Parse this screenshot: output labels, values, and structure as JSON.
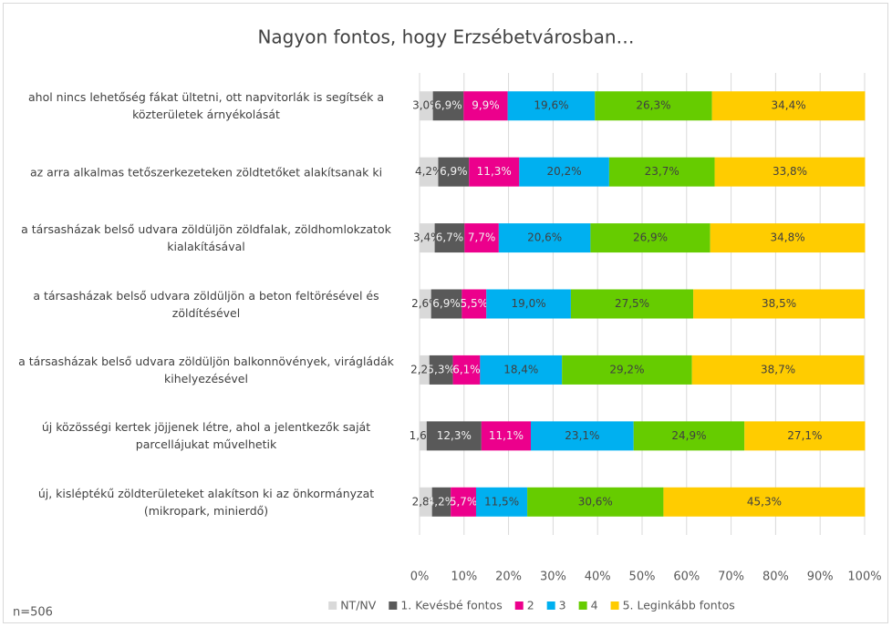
{
  "chart_data": {
    "type": "stacked-bar-horizontal",
    "title": "Nagyon fontos, hogy Erzsébetvárosban…",
    "annotation": "n=506",
    "categories": [
      "ahol nincs lehetőség fákat ültetni, ott napvitorlák is segítsék a közterületek árnyékolását",
      "az arra alkalmas tetőszerkezeteken zöldtetőket alakítsanak ki",
      "a társasházak belső udvara zöldüljön zöldfalak, zöldhomlokzatok kialakításával",
      "a társasházak belső udvara zöldüljön a beton feltörésével és zöldítésével",
      "a társasházak belső udvara zöldüljön balkonnövények, virágládák kihelyezésével",
      "új közösségi kertek jöjjenek létre, ahol a jelentkezők saját parcellájukat művelhetik",
      "új, kisléptékű zöldterületeket alakítson ki az önkormányzat (mikropark, minierdő)"
    ],
    "series": [
      {
        "name": "NT/NV",
        "color": "#d9d9d9",
        "values": [
          3.0,
          4.2,
          3.4,
          2.6,
          2.2,
          1.6,
          2.8
        ],
        "value_labels": [
          "3,0%",
          "4,2%",
          "3,4%",
          "2,6%",
          "2,2%",
          "1,6%",
          "2,8%"
        ]
      },
      {
        "name": "1. Kevésbé fontos",
        "color": "#595959",
        "values": [
          6.9,
          6.9,
          6.7,
          6.9,
          5.3,
          12.3,
          4.2
        ],
        "value_labels": [
          "6,9%",
          "6,9%",
          "6,7%",
          "6,9%",
          "5,3%",
          "12,3%",
          "4,2%"
        ]
      },
      {
        "name": "2",
        "color": "#ec008c",
        "values": [
          9.9,
          11.3,
          7.7,
          5.5,
          6.1,
          11.1,
          5.7
        ],
        "value_labels": [
          "9,9%",
          "11,3%",
          "7,7%",
          "5,5%",
          "6,1%",
          "11,1%",
          "5,7%"
        ]
      },
      {
        "name": "3",
        "color": "#00b0f0",
        "values": [
          19.6,
          20.2,
          20.6,
          19.0,
          18.4,
          23.1,
          11.5
        ],
        "value_labels": [
          "19,6%",
          "20,2%",
          "20,6%",
          "19,0%",
          "18,4%",
          "23,1%",
          "11,5%"
        ]
      },
      {
        "name": "4",
        "color": "#66cc00",
        "values": [
          26.3,
          23.7,
          26.9,
          27.5,
          29.2,
          24.9,
          30.6
        ],
        "value_labels": [
          "26,3%",
          "23,7%",
          "26,9%",
          "27,5%",
          "29,2%",
          "24,9%",
          "30,6%"
        ]
      },
      {
        "name": "5. Leginkább fontos",
        "color": "#ffcc00",
        "values": [
          34.4,
          33.8,
          34.8,
          38.5,
          38.7,
          27.1,
          45.3
        ],
        "value_labels": [
          "34,4%",
          "33,8%",
          "34,8%",
          "38,5%",
          "38,7%",
          "27,1%",
          "45,3%"
        ]
      }
    ],
    "xlim": [
      0,
      100
    ],
    "xticks": [
      {
        "value": 0,
        "label": "0%"
      },
      {
        "value": 10,
        "label": "10%"
      },
      {
        "value": 20,
        "label": "20%"
      },
      {
        "value": 30,
        "label": "30%"
      },
      {
        "value": 40,
        "label": "40%"
      },
      {
        "value": 50,
        "label": "50%"
      },
      {
        "value": 60,
        "label": "60%"
      },
      {
        "value": 70,
        "label": "70%"
      },
      {
        "value": 80,
        "label": "80%"
      },
      {
        "value": 90,
        "label": "90%"
      },
      {
        "value": 100,
        "label": "100%"
      }
    ],
    "grid": true,
    "legend": "bottom"
  }
}
